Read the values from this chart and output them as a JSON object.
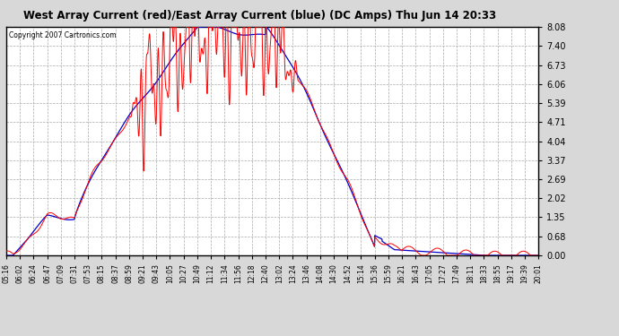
{
  "title": "West Array Current (red)/East Array Current (blue) (DC Amps) Thu Jun 14 20:33",
  "copyright": "Copyright 2007 Cartronics.com",
  "yticks": [
    0.0,
    0.68,
    1.35,
    2.02,
    2.69,
    3.37,
    4.04,
    4.71,
    5.39,
    6.06,
    6.73,
    7.4,
    8.08
  ],
  "ylim": [
    0.0,
    8.08
  ],
  "bg_color": "#d8d8d8",
  "plot_bg": "#ffffff",
  "grid_color": "#aaaaaa",
  "red_color": "#ff0000",
  "blue_color": "#0000cc",
  "xtick_labels": [
    "05:16",
    "06:02",
    "06:24",
    "06:47",
    "07:09",
    "07:31",
    "07:53",
    "08:15",
    "08:37",
    "08:59",
    "09:21",
    "09:43",
    "10:05",
    "10:27",
    "10:49",
    "11:12",
    "11:34",
    "11:56",
    "12:18",
    "12:40",
    "13:02",
    "13:24",
    "13:46",
    "14:08",
    "14:30",
    "14:52",
    "15:14",
    "15:36",
    "15:59",
    "16:21",
    "16:43",
    "17:05",
    "17:27",
    "17:49",
    "18:11",
    "18:33",
    "18:55",
    "19:17",
    "19:39",
    "20:01"
  ]
}
